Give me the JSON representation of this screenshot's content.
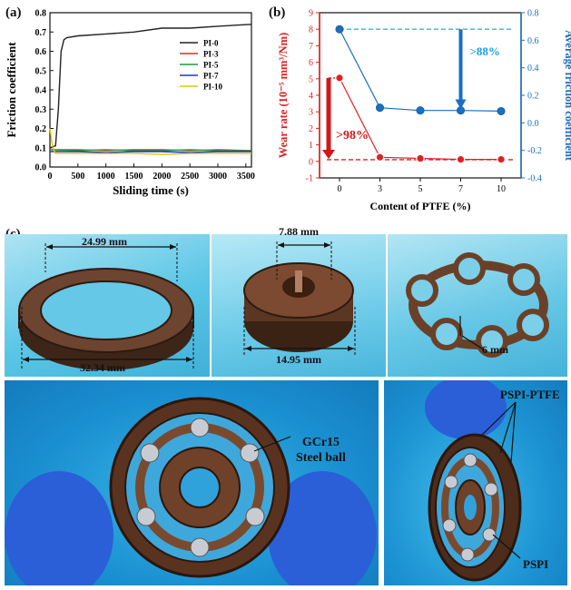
{
  "panels": {
    "a": {
      "label": "(a)"
    },
    "b": {
      "label": "(b)"
    },
    "c": {
      "label": "(c)"
    }
  },
  "chart_data": [
    {
      "type": "line",
      "title": "",
      "xlabel": "Sliding time (s)",
      "ylabel": "Friction coefficient",
      "xlim": [
        0,
        3600
      ],
      "ylim": [
        0,
        0.8
      ],
      "xticks": [
        0,
        500,
        1000,
        1500,
        2000,
        2500,
        3000,
        3500
      ],
      "yticks": [
        0.0,
        0.1,
        0.2,
        0.3,
        0.4,
        0.5,
        0.6,
        0.7,
        0.8
      ],
      "legend_position": "right",
      "series": [
        {
          "name": "PI-0",
          "color": "#222222",
          "x": [
            0,
            100,
            150,
            200,
            250,
            300,
            500,
            1000,
            1500,
            2000,
            2500,
            3000,
            3600
          ],
          "y": [
            0.1,
            0.11,
            0.3,
            0.6,
            0.66,
            0.67,
            0.68,
            0.69,
            0.7,
            0.72,
            0.72,
            0.73,
            0.74
          ]
        },
        {
          "name": "PI-3",
          "color": "#e02828",
          "x": [
            0,
            500,
            1000,
            1500,
            2000,
            2500,
            3000,
            3600
          ],
          "y": [
            0.09,
            0.09,
            0.085,
            0.09,
            0.09,
            0.085,
            0.09,
            0.085
          ]
        },
        {
          "name": "PI-5",
          "color": "#1f9a3a",
          "x": [
            0,
            500,
            1000,
            1500,
            2000,
            2500,
            3000,
            3600
          ],
          "y": [
            0.09,
            0.085,
            0.09,
            0.085,
            0.085,
            0.09,
            0.085,
            0.085
          ]
        },
        {
          "name": "PI-7",
          "color": "#2233cc",
          "x": [
            0,
            500,
            1000,
            1500,
            2000,
            2500,
            3000,
            3600
          ],
          "y": [
            0.08,
            0.08,
            0.075,
            0.08,
            0.08,
            0.075,
            0.08,
            0.08
          ]
        },
        {
          "name": "PI-10",
          "color": "#e8c400",
          "x": [
            0,
            50,
            100,
            500,
            1000,
            1500,
            2000,
            2500,
            3000,
            3600
          ],
          "y": [
            0.2,
            0.1,
            0.07,
            0.07,
            0.07,
            0.07,
            0.065,
            0.07,
            0.07,
            0.07
          ]
        }
      ]
    },
    {
      "type": "line",
      "title": "",
      "xlabel": "Content of PTFE (%)",
      "ylabel_left": "Wear rate (10⁻⁵ mm³/Nm)",
      "ylabel_right": "Average friction coefficient",
      "categories": [
        "0",
        "3",
        "5",
        "7",
        "10"
      ],
      "ylim_left": [
        -1,
        9
      ],
      "ylim_right": [
        -0.4,
        0.8
      ],
      "yticks_left": [
        -1,
        0,
        1,
        2,
        3,
        4,
        5,
        6,
        7,
        8,
        9
      ],
      "yticks_right": [
        -0.4,
        -0.2,
        0.0,
        0.2,
        0.4,
        0.6,
        0.8
      ],
      "series": [
        {
          "name": "",
          "axis": "left",
          "color": "#e02020",
          "values": [
            5.05,
            0.25,
            0.18,
            0.12,
            0.12
          ]
        },
        {
          "name": "",
          "axis": "right",
          "color": "#1a6fc0",
          "values": [
            0.68,
            0.11,
            0.09,
            0.09,
            0.085
          ]
        }
      ],
      "reference_lines": {
        "left": 0.1,
        "right": 0.68
      },
      "annotations": [
        ">98%",
        ">88%"
      ]
    }
  ],
  "photos": {
    "dims": {
      "ring_inner": "24.99 mm",
      "ring_outer": "32.34 mm",
      "disk_inner": "7.88 mm",
      "disk_outer": "14.95 mm",
      "cage": "6 mm"
    },
    "labels": {
      "steel_ball_1": "GCr15",
      "steel_ball_2": "Steel ball",
      "pspi_ptfe": "PSPI-PTFE",
      "pspi": "PSPI"
    }
  }
}
